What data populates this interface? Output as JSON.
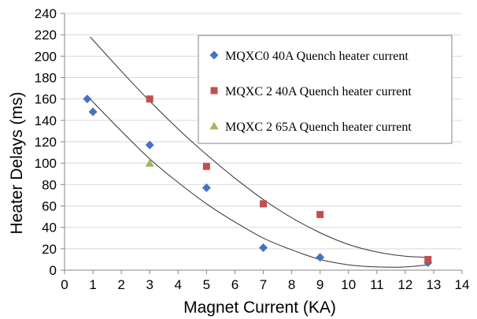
{
  "chart_data": {
    "type": "scatter",
    "title": "",
    "xlabel": "Magnet Current (KA)",
    "ylabel": "Heater Delays   (ms)",
    "xlim": [
      0,
      14
    ],
    "ylim": [
      0,
      240
    ],
    "x_ticks": [
      "0",
      "1",
      "2",
      "3",
      "4",
      "5",
      "6",
      "7",
      "8",
      "9",
      "10",
      "11",
      "12",
      "13",
      "14"
    ],
    "y_ticks": [
      "0",
      "20",
      "40",
      "60",
      "80",
      "100",
      "120",
      "140",
      "160",
      "180",
      "200",
      "220",
      "240"
    ],
    "grid": "horizontal",
    "legend_position": "top-right",
    "series": [
      {
        "name": "MQXC0 40A Quench heater current",
        "marker": "diamond",
        "color": "#4472C4",
        "points": [
          [
            0.8,
            160
          ],
          [
            1,
            148
          ],
          [
            3,
            117
          ],
          [
            5,
            77
          ],
          [
            7,
            21
          ],
          [
            9,
            12
          ],
          [
            12.8,
            7
          ]
        ]
      },
      {
        "name": "MQXC 2 40A Quench heater current",
        "marker": "square",
        "color": "#C0504D",
        "points": [
          [
            3,
            160
          ],
          [
            5,
            97
          ],
          [
            7,
            62
          ],
          [
            9,
            52
          ],
          [
            12.8,
            10
          ]
        ]
      },
      {
        "name": "MQXC 2 65A Quench heater current",
        "marker": "triangle",
        "color": "#9BBB59",
        "points": [
          [
            3,
            100
          ]
        ]
      }
    ],
    "trendlines": [
      {
        "points": [
          [
            0.9,
            218
          ],
          [
            2,
            186
          ],
          [
            3,
            158
          ],
          [
            4,
            132
          ],
          [
            5,
            108
          ],
          [
            6,
            86
          ],
          [
            7,
            66
          ],
          [
            8,
            49
          ],
          [
            9,
            35
          ],
          [
            10,
            24
          ],
          [
            11,
            17
          ],
          [
            12,
            13
          ],
          [
            12.8,
            12
          ]
        ]
      },
      {
        "points": [
          [
            0.9,
            160
          ],
          [
            2,
            130
          ],
          [
            3,
            104
          ],
          [
            4,
            82
          ],
          [
            5,
            62
          ],
          [
            6,
            45
          ],
          [
            7,
            30
          ],
          [
            8,
            19
          ],
          [
            9,
            10
          ],
          [
            10,
            5
          ],
          [
            11,
            3
          ],
          [
            12,
            3
          ],
          [
            12.8,
            5
          ]
        ]
      }
    ]
  }
}
